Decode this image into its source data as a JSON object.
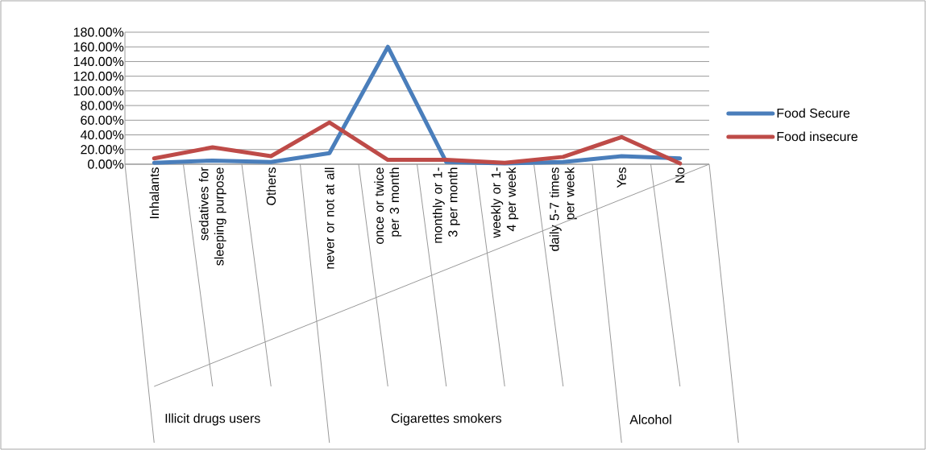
{
  "chart_data": {
    "type": "line",
    "categories": [
      "Inhalants",
      "sedatives for sleeping purpose",
      "Others",
      "never or not at all",
      "once or twice per 3 month",
      "monthly or 1-3 per month",
      "weekly or 1-4 per week",
      "daily 5-7 times per week",
      "Yes",
      "No"
    ],
    "series": [
      {
        "name": "Food Secure",
        "color": "#4a7ebb",
        "values": [
          2,
          5,
          3,
          15,
          160,
          3,
          1,
          3,
          11,
          8
        ]
      },
      {
        "name": "Food insecure",
        "color": "#be4b48",
        "values": [
          8,
          23,
          11,
          57,
          6,
          6,
          2,
          10,
          37,
          1
        ]
      }
    ],
    "ylim": [
      0,
      180
    ],
    "yticks": [
      {
        "value": 0,
        "label": "0.00%"
      },
      {
        "value": 20,
        "label": "20.00%"
      },
      {
        "value": 40,
        "label": "40.00%"
      },
      {
        "value": 60,
        "label": "60.00%"
      },
      {
        "value": 80,
        "label": "80.00%"
      },
      {
        "value": 100,
        "label": "100.00%"
      },
      {
        "value": 120,
        "label": "120.00%"
      },
      {
        "value": 140,
        "label": "140.00%"
      },
      {
        "value": 160,
        "label": "160.00%"
      },
      {
        "value": 180,
        "label": "180.00%"
      }
    ],
    "grid": "y",
    "legend": "right",
    "marker": "none",
    "line_style": "solid",
    "annotations": [
      "Illicit drugs users",
      "Cigarettes smokers",
      "Alcohol"
    ]
  }
}
